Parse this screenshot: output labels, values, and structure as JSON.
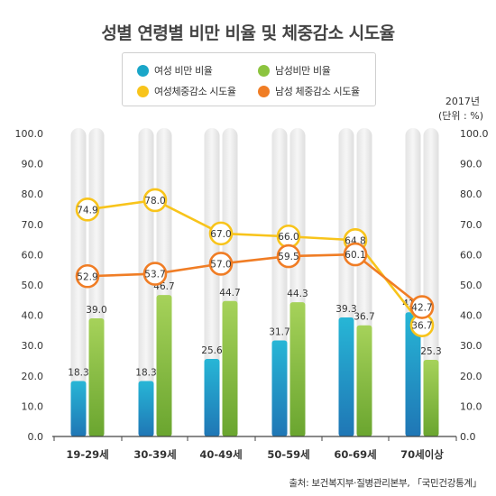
{
  "title": "성별 연령별 비만 비율 및 체중감소 시도율",
  "unit": {
    "year": "2017년",
    "note": "(단위 : %)"
  },
  "source": "출처: 보건복지부·질병관리본부, 「국민건강통계」",
  "legend": [
    {
      "label": "여성 비만 비율",
      "color": "#1aa6c8"
    },
    {
      "label": "남성비만 비율",
      "color": "#8cc43f"
    },
    {
      "label": "여성체중감소 시도율",
      "color": "#f8c41b"
    },
    {
      "label": "남성 체중감소 시도율",
      "color": "#f07d25"
    }
  ],
  "chart_data": {
    "type": "bar",
    "title": "성별 연령별 비만 비율 및 체중감소 시도율",
    "categories": [
      "19-29세",
      "30-39세",
      "40-49세",
      "50-59세",
      "60-69세",
      "70세이상"
    ],
    "ylim": [
      0,
      100
    ],
    "yticks": [
      "0.0",
      "10.0",
      "20.0",
      "30.0",
      "40.0",
      "50.0",
      "60.0",
      "70.0",
      "80.0",
      "90.0",
      "100.0"
    ],
    "bar_series": [
      {
        "name": "여성 비만 비율",
        "color": "#1aa6c8",
        "values": [
          18.3,
          18.3,
          25.6,
          31.7,
          39.3,
          41.0
        ]
      },
      {
        "name": "남성비만 비율",
        "color": "#8cc43f",
        "values": [
          39.0,
          46.7,
          44.7,
          44.3,
          36.7,
          25.3
        ]
      }
    ],
    "line_series": [
      {
        "name": "여성체중감소 시도율",
        "color": "#f8c41b",
        "values": [
          74.9,
          78.0,
          67.0,
          66.0,
          64.8,
          36.7
        ]
      },
      {
        "name": "남성 체중감소 시도율",
        "color": "#f07d25",
        "values": [
          52.9,
          53.7,
          57.0,
          59.5,
          60.1,
          42.7
        ]
      }
    ],
    "grid": false,
    "legend_position": "top-center"
  }
}
